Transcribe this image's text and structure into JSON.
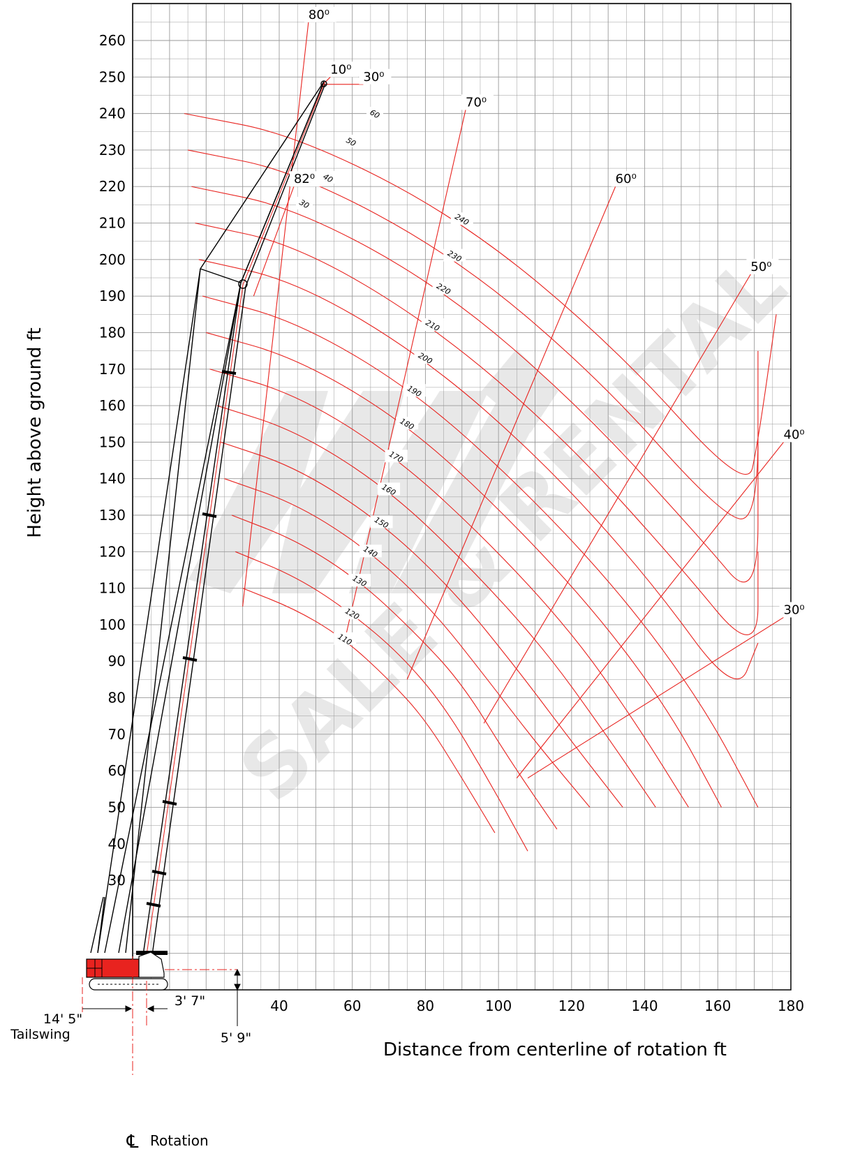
{
  "chart_data": {
    "type": "line",
    "xlabel": "Distance from centerline of rotation  ft",
    "ylabel": "Height above ground  ft",
    "x_ticks": [
      40,
      60,
      80,
      100,
      120,
      140,
      160,
      180
    ],
    "y_ticks": [
      30,
      40,
      50,
      60,
      70,
      80,
      90,
      100,
      110,
      120,
      130,
      140,
      150,
      160,
      170,
      180,
      190,
      200,
      210,
      220,
      230,
      240,
      250,
      260
    ],
    "xlim": [
      -5,
      180
    ],
    "ylim": [
      0,
      270
    ],
    "grid": true,
    "colors": {
      "grid": "#9a9a9a",
      "curve": "#e8231f",
      "crane_body": "#e8231f",
      "line": "#000000"
    },
    "dimensions": {
      "tailswing_label": "14' 5\"",
      "tailswing_caption": "Tailswing",
      "pivot_offset_label": "3' 7\"",
      "pivot_height_label": "5' 9\"",
      "rotation_symbol": "℄",
      "rotation_label": "Rotation"
    },
    "radius_arcs": [
      {
        "label": "110",
        "points": [
          [
            30,
            110
          ],
          [
            45,
            104
          ],
          [
            58,
            96
          ],
          [
            70,
            85
          ],
          [
            80,
            74
          ],
          [
            90,
            58
          ],
          [
            99,
            43
          ]
        ]
      },
      {
        "label": "120",
        "points": [
          [
            28,
            120
          ],
          [
            45,
            113
          ],
          [
            60,
            103
          ],
          [
            73,
            92
          ],
          [
            85,
            78
          ],
          [
            97,
            58
          ],
          [
            108,
            38
          ]
        ]
      },
      {
        "label": "130",
        "points": [
          [
            27,
            130
          ],
          [
            45,
            123
          ],
          [
            62,
            112
          ],
          [
            77,
            98
          ],
          [
            90,
            84
          ],
          [
            103,
            63
          ],
          [
            116,
            44
          ]
        ]
      },
      {
        "label": "140",
        "points": [
          [
            25,
            140
          ],
          [
            45,
            133
          ],
          [
            65,
            120
          ],
          [
            82,
            104
          ],
          [
            97,
            85
          ],
          [
            110,
            68
          ],
          [
            125,
            50
          ]
        ]
      },
      {
        "label": "150",
        "points": [
          [
            24,
            150
          ],
          [
            45,
            143
          ],
          [
            68,
            128
          ],
          [
            88,
            109
          ],
          [
            105,
            88
          ],
          [
            120,
            68
          ],
          [
            134,
            50
          ]
        ]
      },
      {
        "label": "160",
        "points": [
          [
            23,
            160
          ],
          [
            45,
            153
          ],
          [
            70,
            137
          ],
          [
            92,
            116
          ],
          [
            112,
            94
          ],
          [
            128,
            72
          ],
          [
            143,
            50
          ]
        ]
      },
      {
        "label": "170",
        "points": [
          [
            21,
            170
          ],
          [
            45,
            163
          ],
          [
            72,
            146
          ],
          [
            97,
            123
          ],
          [
            120,
            98
          ],
          [
            137,
            74
          ],
          [
            152,
            50
          ]
        ]
      },
      {
        "label": "180",
        "points": [
          [
            20,
            180
          ],
          [
            45,
            173
          ],
          [
            75,
            155
          ],
          [
            102,
            130
          ],
          [
            127,
            103
          ],
          [
            147,
            76
          ],
          [
            161,
            50
          ]
        ]
      },
      {
        "label": "190",
        "points": [
          [
            19,
            190
          ],
          [
            45,
            183
          ],
          [
            77,
            164
          ],
          [
            107,
            137
          ],
          [
            134,
            108
          ],
          [
            156,
            78
          ],
          [
            171,
            50
          ]
        ]
      },
      {
        "label": "200",
        "points": [
          [
            18,
            200
          ],
          [
            45,
            194
          ],
          [
            80,
            173
          ],
          [
            112,
            145
          ],
          [
            141,
            113
          ],
          [
            165,
            80
          ],
          [
            171,
            95
          ]
        ]
      },
      {
        "label": "210",
        "points": [
          [
            17,
            210
          ],
          [
            45,
            204
          ],
          [
            82,
            182
          ],
          [
            117,
            152
          ],
          [
            148,
            118
          ],
          [
            171,
            90
          ],
          [
            171,
            120
          ]
        ]
      },
      {
        "label": "220",
        "points": [
          [
            16,
            220
          ],
          [
            45,
            214
          ],
          [
            85,
            192
          ],
          [
            122,
            160
          ],
          [
            155,
            124
          ],
          [
            171,
            105
          ],
          [
            171,
            150
          ]
        ]
      },
      {
        "label": "230",
        "points": [
          [
            15,
            230
          ],
          [
            45,
            224
          ],
          [
            88,
            201
          ],
          [
            127,
            168
          ],
          [
            161,
            130
          ],
          [
            171,
            128
          ],
          [
            171,
            175
          ]
        ]
      },
      {
        "label": "240",
        "points": [
          [
            14,
            240
          ],
          [
            45,
            234
          ],
          [
            90,
            211
          ],
          [
            132,
            176
          ],
          [
            168,
            136
          ],
          [
            171,
            150
          ],
          [
            176,
            185
          ]
        ]
      }
    ],
    "boom_angle_lines": [
      {
        "label": "80⁰",
        "from": [
          30,
          105
        ],
        "to": [
          48,
          265
        ]
      },
      {
        "label": "82⁰",
        "from": [
          33,
          190
        ],
        "to": [
          44,
          220
        ]
      },
      {
        "label": "10⁰",
        "from": [
          52,
          248
        ],
        "to": [
          54,
          250
        ]
      },
      {
        "label": "30⁰",
        "from": [
          52,
          248
        ],
        "to": [
          63,
          248
        ]
      },
      {
        "label": "70⁰",
        "from": [
          58,
          96
        ],
        "to": [
          91,
          241
        ]
      },
      {
        "label": "60⁰",
        "from": [
          75,
          85
        ],
        "to": [
          132,
          220
        ]
      },
      {
        "label": "50⁰",
        "from": [
          96,
          73
        ],
        "to": [
          169,
          196
        ]
      },
      {
        "label": "40⁰",
        "from": [
          105,
          58
        ],
        "to": [
          178,
          150
        ]
      },
      {
        "label": "30⁰",
        "from": [
          108,
          58
        ],
        "to": [
          178,
          102
        ]
      }
    ],
    "jib_offset_labels": [
      "60",
      "50",
      "40",
      "30"
    ]
  }
}
